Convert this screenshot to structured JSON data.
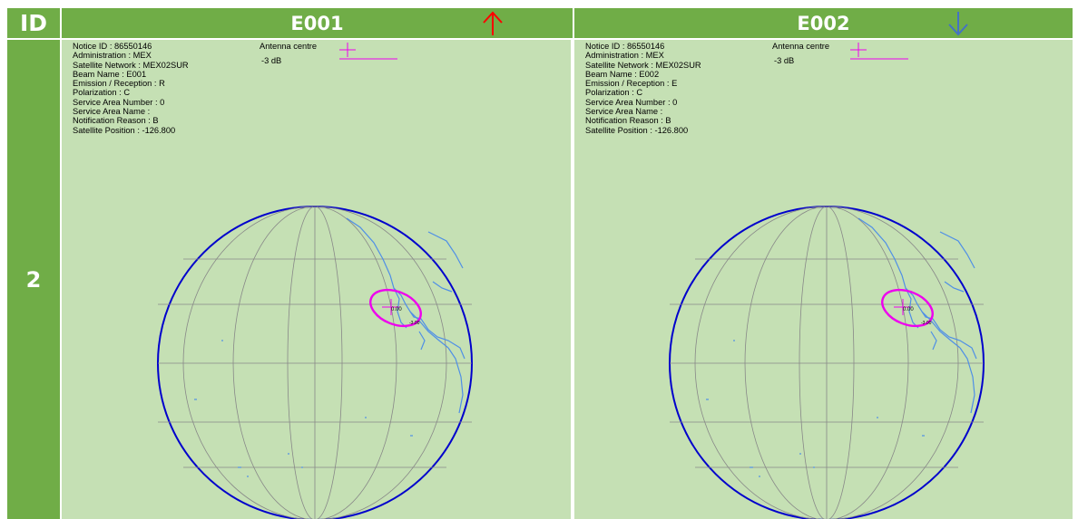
{
  "header": {
    "id_label": "ID",
    "beam1_title": "E001",
    "beam2_title": "E002",
    "beam1_arrow": "arrow-up-icon",
    "beam2_arrow": "arrow-down-icon"
  },
  "row": {
    "id": "2"
  },
  "colors": {
    "header_bg": "#70ad47",
    "panel_bg": "#c5e0b4",
    "arrow_up": "#ff0000",
    "arrow_down": "#4472c4",
    "contour": "#ee00ee",
    "coast": "#4f8fe6",
    "globe_edge": "#0000cc"
  },
  "panels": [
    {
      "info": [
        "Notice ID : 86550146",
        "Administration : MEX",
        "Satellite Network : MEX02SUR",
        "Beam Name : E001",
        "Emission / Reception : R",
        "Polarization : C",
        "Service Area Number : 0",
        "Service Area Name :",
        "Notification Reason : B",
        "Satellite Position : -126.800"
      ],
      "legend": {
        "centre_label": "Antenna centre",
        "contour_label": "-3 dB"
      },
      "map": {
        "centre_value": "0.00",
        "contour_value": "-3.00"
      }
    },
    {
      "info": [
        "Notice ID : 86550146",
        "Administration : MEX",
        "Satellite Network : MEX02SUR",
        "Beam Name : E002",
        "Emission / Reception : E",
        "Polarization : C",
        "Service Area Number : 0",
        "Service Area Name :",
        "Notification Reason : B",
        "Satellite Position : -126.800"
      ],
      "legend": {
        "centre_label": "Antenna centre",
        "contour_label": "-3 dB"
      },
      "map": {
        "centre_value": "0.00",
        "contour_value": "-3.00"
      }
    }
  ]
}
